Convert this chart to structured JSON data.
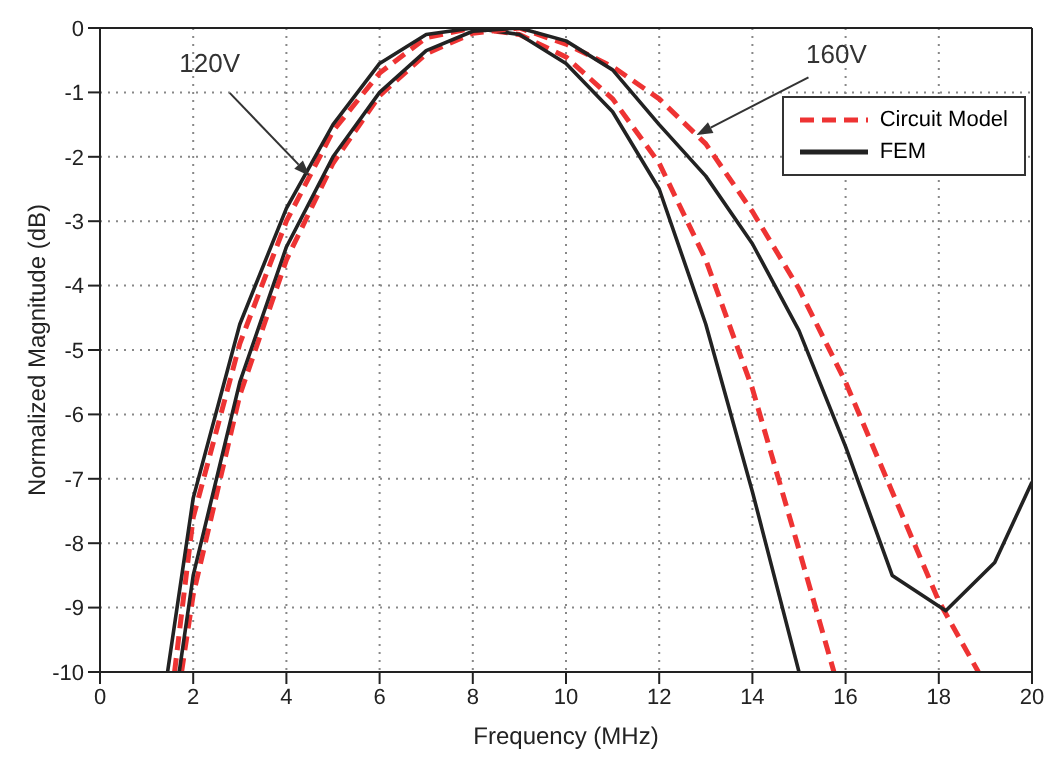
{
  "chart_data": {
    "type": "line",
    "xlabel": "Frequency (MHz)",
    "ylabel": "Normalized Magnitude (dB)",
    "xlim": [
      0,
      20
    ],
    "xticks": [
      0,
      2,
      4,
      6,
      8,
      10,
      12,
      14,
      16,
      18,
      20
    ],
    "ylim": [
      -10,
      0
    ],
    "yticks": [
      -10,
      -9,
      -8,
      -7,
      -6,
      -5,
      -4,
      -3,
      -2,
      -1,
      0
    ],
    "grid": true,
    "legend": "top right",
    "marker": "none",
    "annotations": [
      {
        "text": "120V",
        "x": 4.5,
        "y": -2.3
      },
      {
        "text": "160V",
        "x": 12.8,
        "y": -1.66
      }
    ],
    "series": [
      {
        "name": "Circuit Model",
        "color": "#ee3333",
        "line_style": "dashed",
        "x": [
          1.6,
          2,
          3,
          4,
          5,
          6,
          7,
          8,
          9,
          10,
          11,
          12,
          13,
          14,
          15,
          15.75
        ],
        "values": [
          -10,
          -7.6,
          -4.9,
          -3,
          -1.6,
          -0.7,
          -0.15,
          0,
          -0.1,
          -0.45,
          -1.1,
          -2.1,
          -3.6,
          -5.6,
          -8.1,
          -10
        ]
      },
      {
        "name": "FEM",
        "color": "#222222",
        "line_style": "solid",
        "x": [
          1.45,
          2,
          3,
          4,
          5,
          6,
          7,
          8,
          9,
          10,
          11,
          12,
          13,
          14,
          15
        ],
        "values": [
          -10,
          -7.3,
          -4.6,
          -2.8,
          -1.5,
          -0.55,
          -0.1,
          0,
          -0.1,
          -0.55,
          -1.3,
          -2.5,
          -4.6,
          -7.2,
          -10
        ]
      },
      {
        "color": "#ee3333",
        "line_style": "dashed",
        "x": [
          1.75,
          2,
          3,
          4,
          5,
          6,
          7,
          8,
          9,
          10,
          11,
          12,
          13,
          14,
          15,
          16,
          17,
          18,
          18.85
        ],
        "values": [
          -10,
          -8.8,
          -5.7,
          -3.6,
          -2.1,
          -1.05,
          -0.4,
          -0.08,
          0,
          -0.25,
          -0.6,
          -1.1,
          -1.8,
          -2.85,
          -4.05,
          -5.5,
          -7.2,
          -8.9,
          -10
        ]
      },
      {
        "color": "#222222",
        "line_style": "solid",
        "x": [
          1.7,
          2,
          3,
          4,
          5,
          6,
          7,
          8,
          9,
          10,
          11,
          12,
          13,
          14,
          15,
          16,
          17,
          18.15,
          19.2,
          20
        ],
        "values": [
          -10,
          -8.5,
          -5.5,
          -3.4,
          -2,
          -1,
          -0.35,
          -0.05,
          0,
          -0.2,
          -0.65,
          -1.5,
          -2.3,
          -3.35,
          -4.7,
          -6.5,
          -8.5,
          -9.05,
          -8.3,
          -7.05
        ]
      }
    ]
  }
}
